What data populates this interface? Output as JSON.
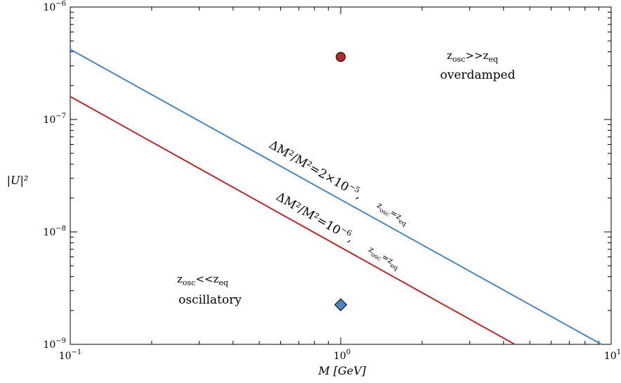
{
  "chart_data": {
    "type": "line",
    "xscale": "log",
    "yscale": "log",
    "xlim": [
      0.1,
      10
    ],
    "ylim": [
      1e-09,
      1e-06
    ],
    "xlabel": "M [GeV]",
    "ylabel": "|U|²",
    "x_tick_labels": [
      {
        "base": "10",
        "exp": "−1",
        "value": 0.1
      },
      {
        "base": "10",
        "exp": "0",
        "value": 1
      },
      {
        "base": "10",
        "exp": "1",
        "value": 10
      }
    ],
    "y_tick_labels": [
      {
        "base": "10",
        "exp": "−9",
        "value": 1e-09
      },
      {
        "base": "10",
        "exp": "−8",
        "value": 1e-08
      },
      {
        "base": "10",
        "exp": "−7",
        "value": 1e-07
      },
      {
        "base": "10",
        "exp": "−6",
        "value": 1e-06
      }
    ],
    "series": [
      {
        "color": "#4a86bf",
        "x": [
          0.1,
          9.2
        ],
        "y": [
          4.2e-07,
          1e-09
        ],
        "label_parts": {
          "main": "ΔM²/M²=2×10",
          "exp": "−5",
          "cond": "z",
          "sub1": "osc",
          "eq": "=z",
          "sub2": "eq"
        }
      },
      {
        "color": "#b52a2a",
        "x": [
          0.1,
          4.4
        ],
        "y": [
          1.6e-07,
          1e-09
        ],
        "label_parts": {
          "main": "ΔM²/M²=10",
          "exp": "−6",
          "cond": "z",
          "sub1": "osc",
          "eq": "=z",
          "sub2": "eq"
        }
      }
    ],
    "points": [
      {
        "x": 1.0,
        "y": 3.6e-07,
        "marker": "circle",
        "color": "#b52a2a"
      },
      {
        "x": 1.0,
        "y": 2.25e-09,
        "marker": "diamond",
        "color": "#4a86bf"
      }
    ],
    "regions": {
      "upper": {
        "z": "z",
        "sub1": "osc",
        "rel": ">>z",
        "sub2": "eq",
        "name": "overdamped"
      },
      "lower": {
        "z": "z",
        "sub1": "osc",
        "rel": "<<z",
        "sub2": "eq",
        "name": "oscillatory"
      }
    },
    "grid": false,
    "legend": "none"
  }
}
